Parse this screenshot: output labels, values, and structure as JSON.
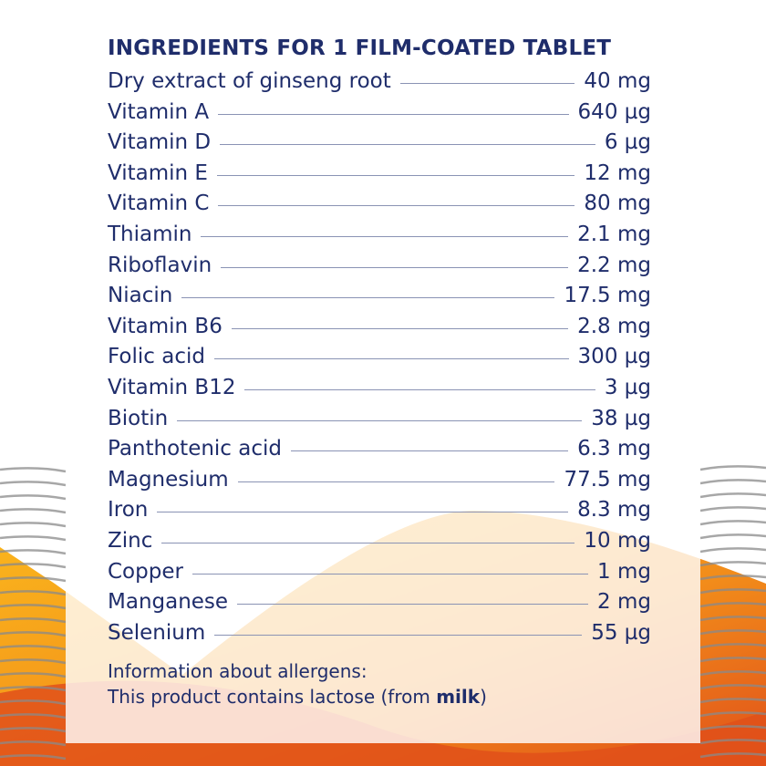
{
  "title": "INGREDIENTS FOR 1 FILM-COATED TABLET",
  "ingredients": [
    {
      "name": "Dry extract of ginseng root",
      "amount": "40 mg"
    },
    {
      "name": "Vitamin A",
      "amount": "640 µg"
    },
    {
      "name": "Vitamin D",
      "amount": "6 µg"
    },
    {
      "name": "Vitamin E",
      "amount": "12 mg"
    },
    {
      "name": "Vitamin C",
      "amount": "80 mg"
    },
    {
      "name": "Thiamin",
      "amount": "2.1 mg"
    },
    {
      "name": "Riboflavin",
      "amount": "2.2 mg"
    },
    {
      "name": "Niacin",
      "amount": "17.5 mg"
    },
    {
      "name": "Vitamin B6",
      "amount": "2.8 mg"
    },
    {
      "name": "Folic acid",
      "amount": "300 µg"
    },
    {
      "name": "Vitamin B12",
      "amount": "3 µg"
    },
    {
      "name": "Biotin",
      "amount": "38 µg"
    },
    {
      "name": "Panthotenic acid",
      "amount": "6.3 mg"
    },
    {
      "name": "Magnesium",
      "amount": "77.5 mg"
    },
    {
      "name": "Iron",
      "amount": "8.3 mg"
    },
    {
      "name": "Zinc",
      "amount": "10 mg"
    },
    {
      "name": "Copper",
      "amount": "1 mg"
    },
    {
      "name": "Manganese",
      "amount": "2 mg"
    },
    {
      "name": "Selenium",
      "amount": "55 µg"
    }
  ],
  "allergens": {
    "heading": "Information about allergens:",
    "text_before": "This product contains lactose (from ",
    "highlight": "milk",
    "text_after": ")"
  },
  "colors": {
    "text": "#1f2d6b",
    "orange": "#f28c1a",
    "dark_orange": "#e0501a",
    "yellow": "#fbb81c"
  }
}
